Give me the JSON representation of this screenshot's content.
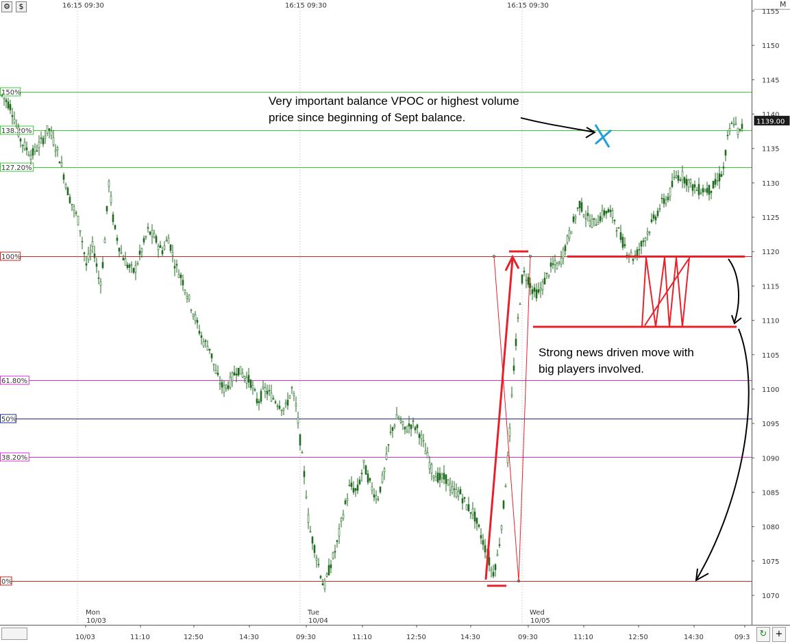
{
  "toolbar": {
    "icon_1": "chart-settings-icon",
    "icon_2": "dollar-icon",
    "panel_letter": "M"
  },
  "colors": {
    "fib_green": "#33cc33",
    "fib_red": "#cc2222",
    "fib_magenta": "#cc33cc",
    "fib_blue": "#1a2a8a",
    "candle": "#1f6b1f",
    "drawing_red": "#e8202a",
    "drawing_blue": "#1e9fd8",
    "drawing_black": "#000000"
  },
  "chart_data": {
    "type": "candlestick",
    "price_axis": {
      "ticks": [
        "1155",
        "1150",
        "1145",
        "1140",
        "1135",
        "1130",
        "1125",
        "1120",
        "1115",
        "1110",
        "1105",
        "1100",
        "1095",
        "1090",
        "1085",
        "1080",
        "1075",
        "1070"
      ],
      "range": [
        1067,
        1156
      ],
      "current_price": "1139.00"
    },
    "session_markers": [
      {
        "label": "16:15  09:30"
      },
      {
        "label": "16:15  09:30"
      },
      {
        "label": "16:15  09:30"
      }
    ],
    "time_axis": {
      "ticks": [
        "10/03",
        "11:10",
        "12:50",
        "14:30",
        "09:30",
        "11:10",
        "12:50",
        "14:30",
        "09:30",
        "11:10",
        "12:50",
        "14:30",
        "09:3"
      ],
      "days": [
        {
          "day": "Mon",
          "date": "10/03"
        },
        {
          "day": "Tue",
          "date": "10/04"
        },
        {
          "day": "Wed",
          "date": "10/05"
        }
      ]
    },
    "fib_levels": [
      {
        "label": "150%",
        "price": 1143.2,
        "color": "green"
      },
      {
        "label": "138.20%",
        "price": 1137.7,
        "color": "green"
      },
      {
        "label": "127.20%",
        "price": 1132.3,
        "color": "green"
      },
      {
        "label": "100%",
        "price": 1119.3,
        "color": "red"
      },
      {
        "label": "61.80%",
        "price": 1101.3,
        "color": "magenta"
      },
      {
        "label": "50%",
        "price": 1095.7,
        "color": "blue"
      },
      {
        "label": "38.20%",
        "price": 1090.1,
        "color": "magenta"
      },
      {
        "label": "0%",
        "price": 1072.1,
        "color": "red"
      }
    ],
    "price_path": [
      [
        0,
        1143
      ],
      [
        15,
        1141
      ],
      [
        30,
        1136
      ],
      [
        45,
        1134
      ],
      [
        60,
        1136
      ],
      [
        70,
        1138
      ],
      [
        85,
        1134
      ],
      [
        100,
        1128
      ],
      [
        115,
        1124
      ],
      [
        125,
        1118
      ],
      [
        135,
        1121
      ],
      [
        145,
        1115
      ],
      [
        150,
        1119
      ],
      [
        158,
        1130
      ],
      [
        165,
        1124
      ],
      [
        175,
        1120
      ],
      [
        185,
        1118
      ],
      [
        195,
        1117
      ],
      [
        205,
        1120
      ],
      [
        215,
        1123
      ],
      [
        225,
        1122
      ],
      [
        235,
        1120
      ],
      [
        245,
        1122
      ],
      [
        255,
        1118
      ],
      [
        265,
        1116
      ],
      [
        275,
        1113
      ],
      [
        285,
        1110
      ],
      [
        295,
        1107
      ],
      [
        305,
        1106
      ],
      [
        315,
        1102
      ],
      [
        325,
        1100
      ],
      [
        335,
        1101
      ],
      [
        345,
        1103
      ],
      [
        355,
        1102
      ],
      [
        365,
        1101
      ],
      [
        375,
        1098
      ],
      [
        385,
        1100
      ],
      [
        395,
        1099
      ],
      [
        405,
        1098
      ],
      [
        415,
        1097
      ],
      [
        425,
        1100
      ],
      [
        432,
        1097
      ],
      [
        440,
        1090
      ],
      [
        445,
        1086
      ],
      [
        450,
        1080
      ],
      [
        458,
        1077
      ],
      [
        465,
        1074
      ],
      [
        472,
        1071
      ],
      [
        480,
        1074
      ],
      [
        490,
        1077
      ],
      [
        500,
        1082
      ],
      [
        510,
        1086
      ],
      [
        520,
        1085
      ],
      [
        530,
        1089
      ],
      [
        540,
        1086
      ],
      [
        550,
        1084
      ],
      [
        560,
        1088
      ],
      [
        570,
        1094
      ],
      [
        580,
        1096
      ],
      [
        590,
        1094
      ],
      [
        600,
        1095
      ],
      [
        610,
        1094
      ],
      [
        620,
        1091
      ],
      [
        630,
        1088
      ],
      [
        640,
        1087
      ],
      [
        650,
        1087
      ],
      [
        660,
        1085
      ],
      [
        670,
        1085
      ],
      [
        680,
        1083
      ],
      [
        690,
        1082
      ],
      [
        700,
        1079
      ],
      [
        710,
        1076
      ],
      [
        718,
        1073
      ],
      [
        726,
        1076
      ],
      [
        734,
        1083
      ],
      [
        742,
        1092
      ],
      [
        748,
        1102
      ],
      [
        755,
        1110
      ],
      [
        762,
        1117
      ],
      [
        770,
        1116
      ],
      [
        778,
        1114
      ],
      [
        786,
        1114
      ],
      [
        795,
        1116
      ],
      [
        805,
        1118
      ],
      [
        815,
        1118
      ],
      [
        825,
        1121
      ],
      [
        835,
        1124
      ],
      [
        845,
        1127
      ],
      [
        855,
        1125
      ],
      [
        865,
        1124
      ],
      [
        875,
        1125
      ],
      [
        885,
        1126
      ],
      [
        895,
        1125
      ],
      [
        905,
        1122
      ],
      [
        915,
        1120
      ],
      [
        925,
        1119
      ],
      [
        935,
        1121
      ],
      [
        945,
        1123
      ],
      [
        955,
        1125
      ],
      [
        965,
        1127
      ],
      [
        975,
        1128
      ],
      [
        985,
        1131
      ],
      [
        995,
        1131
      ],
      [
        1005,
        1130
      ],
      [
        1015,
        1129
      ],
      [
        1025,
        1129
      ],
      [
        1035,
        1129
      ],
      [
        1045,
        1130
      ],
      [
        1055,
        1132
      ],
      [
        1062,
        1137
      ],
      [
        1070,
        1139
      ],
      [
        1078,
        1137
      ],
      [
        1085,
        1139
      ]
    ],
    "annotations": [
      {
        "text": "Very important balance VPOC or highest volume"
      },
      {
        "text": "price since beginning of Sept balance."
      },
      {
        "text": "Strong news driven move with"
      },
      {
        "text": "big players involved."
      }
    ]
  }
}
